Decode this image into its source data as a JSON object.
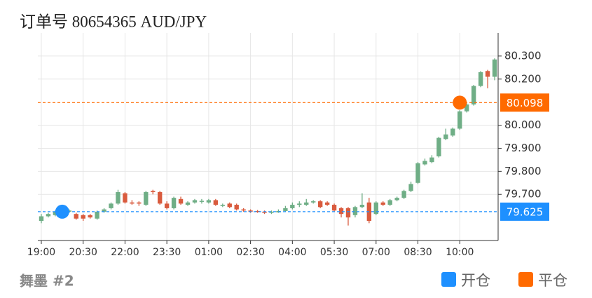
{
  "chart_data": {
    "type": "candlestick",
    "title": "订单号 80654365    AUD/JPY",
    "categories": [
      "19:00",
      null,
      null,
      null,
      null,
      null,
      "20:30",
      null,
      null,
      null,
      null,
      null,
      "22:00",
      null,
      null,
      null,
      null,
      null,
      "23:30",
      null,
      null,
      null,
      null,
      null,
      "01:00",
      null,
      null,
      null,
      null,
      null,
      "02:30",
      null,
      null,
      null,
      null,
      null,
      "04:00",
      null,
      null,
      null,
      null,
      null,
      "05:30",
      null,
      null,
      null,
      null,
      null,
      "07:00",
      null,
      null,
      null,
      null,
      null,
      "08:30",
      null,
      null,
      null,
      null,
      null,
      "10:00",
      null,
      null,
      null,
      null,
      null
    ],
    "open": [
      79.585,
      79.605,
      79.61,
      79.62,
      79.625,
      79.615,
      79.61,
      79.61,
      79.595,
      79.625,
      79.64,
      79.66,
      79.705,
      79.665,
      79.665,
      79.655,
      79.715,
      79.71,
      79.66,
      79.64,
      79.68,
      79.655,
      79.665,
      79.67,
      79.665,
      79.675,
      79.65,
      79.66,
      79.655,
      79.635,
      79.63,
      79.628,
      79.625,
      79.62,
      79.622,
      79.628,
      79.64,
      79.655,
      79.655,
      79.665,
      79.67,
      79.665,
      79.655,
      79.64,
      79.64,
      79.61,
      79.645,
      79.665,
      79.615,
      79.665,
      79.655,
      79.675,
      79.685,
      79.715,
      79.75,
      79.83,
      79.84,
      79.865,
      79.94,
      79.955,
      79.985,
      80.06,
      80.09,
      80.17,
      80.235,
      80.21
    ],
    "high": [
      79.615,
      79.62,
      79.63,
      79.64,
      79.635,
      79.62,
      79.615,
      79.615,
      79.63,
      79.64,
      79.665,
      79.72,
      79.71,
      79.675,
      79.67,
      79.715,
      79.72,
      79.715,
      79.67,
      79.69,
      79.69,
      79.67,
      79.68,
      79.68,
      79.68,
      79.68,
      79.66,
      79.665,
      79.66,
      79.64,
      79.635,
      79.632,
      79.63,
      79.63,
      79.635,
      79.65,
      79.665,
      79.67,
      79.68,
      79.675,
      79.675,
      79.67,
      79.66,
      79.645,
      79.645,
      79.65,
      79.705,
      79.685,
      79.67,
      79.67,
      79.68,
      79.69,
      79.72,
      79.755,
      79.84,
      79.855,
      79.87,
      79.95,
      79.985,
      79.99,
      80.065,
      80.095,
      80.175,
      80.235,
      80.24,
      80.29
    ],
    "low": [
      79.575,
      79.6,
      79.605,
      79.615,
      79.62,
      79.59,
      79.585,
      79.595,
      79.59,
      79.62,
      79.635,
      79.655,
      79.66,
      79.655,
      79.65,
      79.65,
      79.7,
      79.655,
      79.635,
      79.635,
      79.655,
      79.65,
      79.66,
      79.66,
      79.66,
      79.65,
      79.645,
      79.64,
      79.63,
      79.625,
      79.62,
      79.62,
      79.615,
      79.615,
      79.62,
      79.625,
      79.635,
      79.645,
      79.65,
      79.66,
      79.64,
      79.65,
      79.625,
      79.6,
      79.565,
      79.6,
      79.64,
      79.575,
      79.61,
      79.65,
      79.65,
      79.67,
      79.68,
      79.71,
      79.745,
      79.825,
      79.835,
      79.86,
      79.935,
      79.95,
      79.98,
      80.055,
      80.085,
      80.165,
      80.16,
      80.195
    ],
    "close": [
      79.605,
      79.615,
      79.625,
      79.63,
      79.63,
      79.595,
      79.595,
      79.6,
      79.625,
      79.635,
      79.66,
      79.71,
      79.665,
      79.66,
      79.66,
      79.71,
      79.71,
      79.66,
      79.64,
      79.685,
      79.66,
      79.665,
      79.675,
      79.672,
      79.675,
      79.655,
      79.655,
      79.645,
      79.635,
      79.63,
      79.628,
      79.625,
      79.62,
      79.625,
      79.628,
      79.64,
      79.655,
      79.66,
      79.665,
      79.67,
      79.645,
      79.655,
      79.63,
      79.615,
      79.6,
      79.645,
      79.655,
      79.585,
      79.665,
      79.655,
      79.675,
      79.685,
      79.715,
      79.745,
      79.835,
      79.845,
      79.86,
      79.945,
      79.96,
      79.985,
      80.06,
      80.09,
      80.17,
      80.23,
      80.21,
      80.285
    ],
    "up_color": "#6fae86",
    "down_color": "#d95b3e",
    "ylim": [
      79.5,
      80.4
    ],
    "yticks": [
      {
        "value": 79.7,
        "label": "79.700"
      },
      {
        "value": 79.8,
        "label": "79.800"
      },
      {
        "value": 79.9,
        "label": "79.900"
      },
      {
        "value": 80.0,
        "label": "80.000"
      },
      {
        "value": 80.2,
        "label": "80.200"
      },
      {
        "value": 80.3,
        "label": "80.300"
      }
    ],
    "grid": true,
    "markers": [
      {
        "name": "开仓",
        "color": "#1e90ff",
        "category_index": 3,
        "value": 79.625
      },
      {
        "name": "平仓",
        "color": "#ff6a00",
        "category_index": 60,
        "value": 80.098
      }
    ]
  },
  "footer": "舞墨 #2"
}
